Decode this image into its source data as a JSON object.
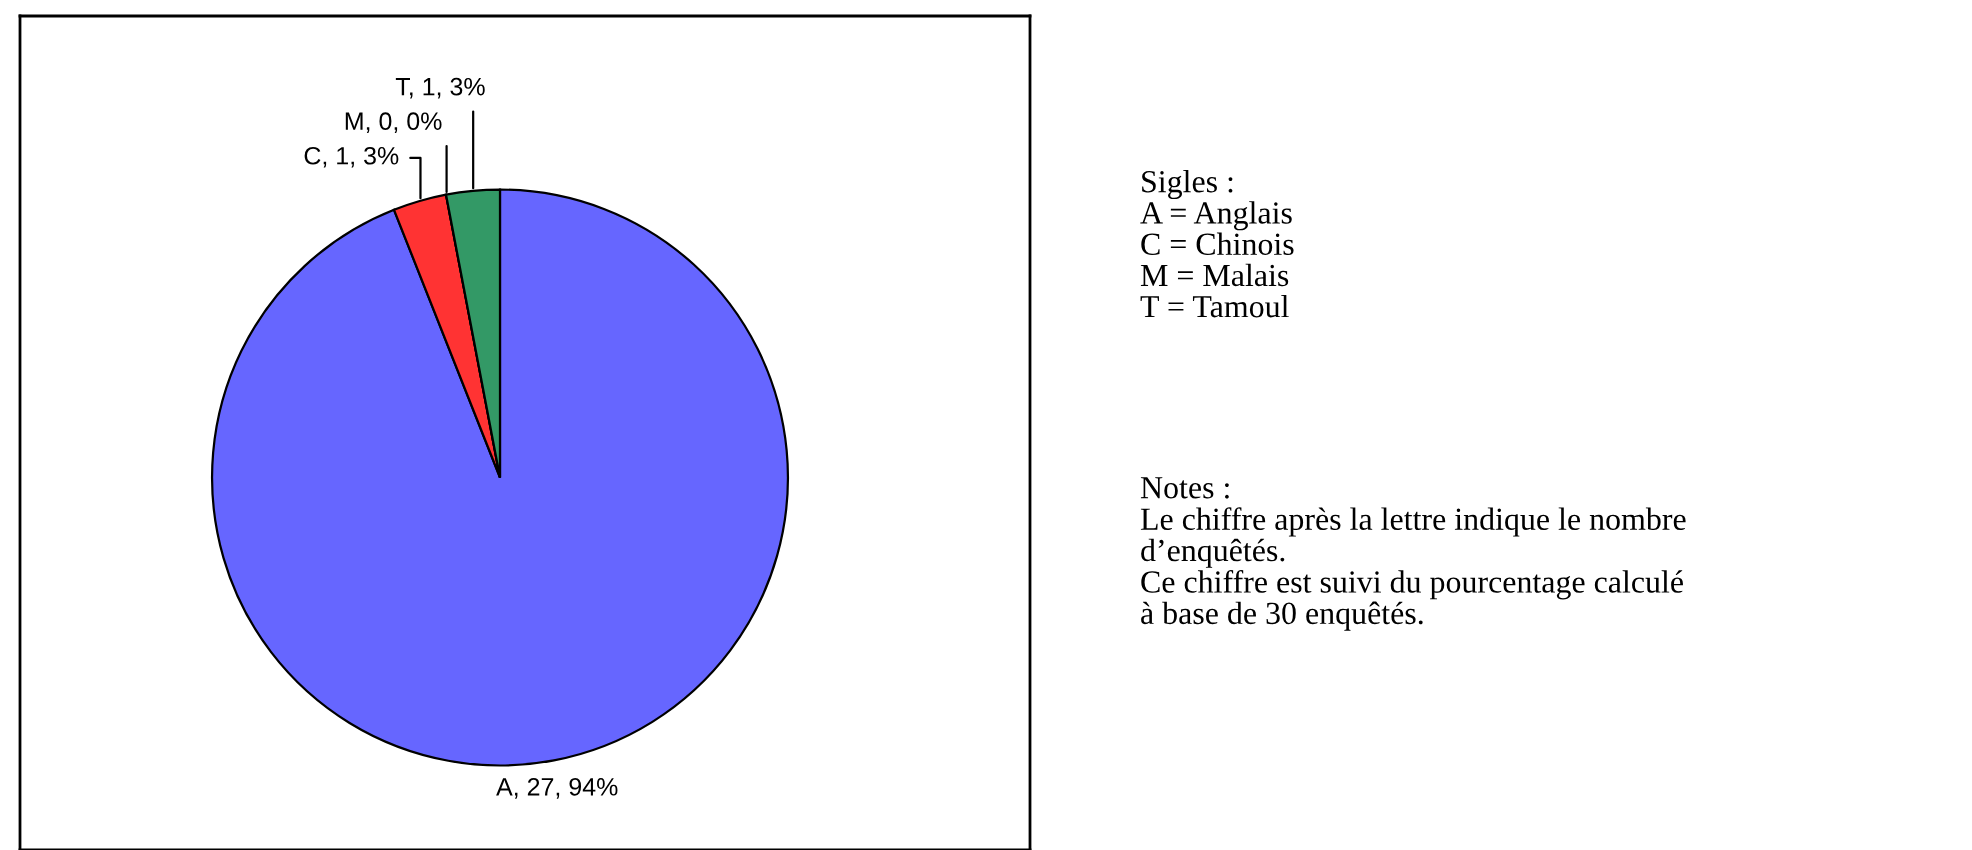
{
  "chart_data": {
    "type": "pie",
    "categories": [
      null,
      null,
      null,
      null
    ],
    "values": [
      94,
      3,
      0,
      3
    ],
    "value_labels": [
      "A, 27, 94%",
      "C, 1, 3%",
      "M, 0, 0%",
      "T, 1, 3%"
    ],
    "colors": [
      "#6666ff",
      "#ff3333",
      "#ffffff",
      "#339966"
    ],
    "annotations": [
      "Sigles :\nA = Anglais\nC = Chinois\nM = Malais\nT = Tamoul",
      "Notes :\nLe chiffre après la lettre indique le nombre\nd’enquêtés.\nCe chiffre est suivi du pourcentage calculé\nà base de 30 enquêtés."
    ]
  }
}
